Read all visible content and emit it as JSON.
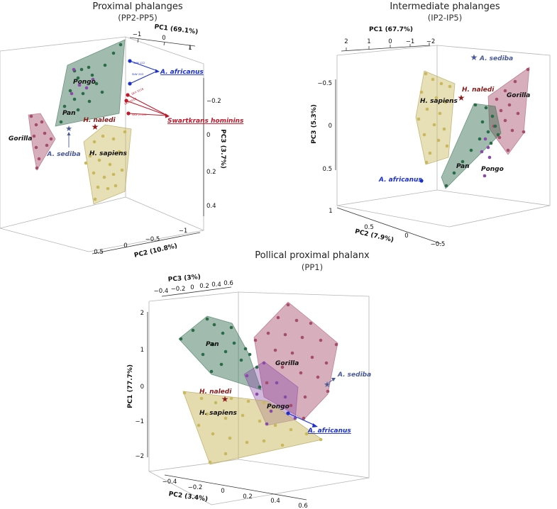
{
  "colors": {
    "human": "#c9b85e",
    "pan": "#2e6b4b",
    "gorilla": "#a64d6b",
    "pongo": "#8a4aa8",
    "naledi": "#8b1a1a",
    "sediba": "#4a5a9a",
    "africanus": "#1a2fd0",
    "swartkrans": "#c0182a"
  },
  "chart_data": [
    {
      "type": "scatter",
      "title": "Proximal phalanges",
      "subtitle": "(PP2-PP5)",
      "axes": {
        "pc1": {
          "label": "PC1 (69.1%)",
          "ticks": [
            "−1",
            "0",
            "1"
          ]
        },
        "pc2": {
          "label": "PC2 (10.8%)",
          "ticks": [
            "0.5",
            "0",
            "−0.5",
            "−1"
          ]
        },
        "pc3": {
          "label": "PC3 (3.7%)",
          "ticks": [
            "−0.2",
            "0",
            "0.2",
            "0.4"
          ]
        }
      },
      "groups": [
        "Pongo",
        "Pan",
        "Gorilla",
        "H. sapiens"
      ],
      "fossils": {
        "naledi": "H. naledi",
        "sediba": "A. sediba",
        "africanus": "A. africanus",
        "swartkrans": "Swartkrans hominins"
      },
      "specimens": {
        "a1": "StW 122",
        "a2": "StW 293",
        "s1": "SKX 3116",
        "s2": "SKX 5018",
        "s3": "SKX 27431"
      }
    },
    {
      "type": "scatter",
      "title": "Intermediate phalanges",
      "subtitle": "(IP2-IP5)",
      "axes": {
        "pc1": {
          "label": "PC1 (67.7%)",
          "ticks": [
            "2",
            "1",
            "0",
            "−1",
            "−2"
          ]
        },
        "pc2": {
          "label": "PC2 (7.9%)",
          "ticks": [
            "1",
            "0.5",
            "0",
            "−0.5"
          ]
        },
        "pc3": {
          "label": "PC3 (5.3%)",
          "ticks": [
            "−0.5",
            "0",
            "0.5"
          ]
        }
      },
      "groups": [
        "H. sapiens",
        "Gorilla",
        "Pan",
        "Pongo"
      ],
      "fossils": {
        "naledi": "H. naledi",
        "sediba": "A. sediba",
        "africanus": "A. africanus"
      }
    },
    {
      "type": "scatter",
      "title": "Pollical proximal phalanx",
      "subtitle": "(PP1)",
      "axes": {
        "pc1": {
          "label": "PC1 (77.7%)",
          "ticks": [
            "2",
            "1",
            "0",
            "−1",
            "−2"
          ]
        },
        "pc2": {
          "label": "PC2 (3.4%)",
          "ticks": [
            "−0.4",
            "−0.2",
            "0",
            "0.2",
            "0.4",
            "0.6"
          ]
        },
        "pc3": {
          "label": "PC3 (3%)",
          "ticks": [
            "−0.4",
            "−0.2",
            "0",
            "0.2",
            "0.4",
            "0.6"
          ]
        }
      },
      "groups": [
        "Pan",
        "Gorilla",
        "H. sapiens",
        "Pongo"
      ],
      "fossils": {
        "naledi": "H. naledi",
        "sediba": "A. sediba",
        "africanus": "A. africanus"
      }
    }
  ]
}
